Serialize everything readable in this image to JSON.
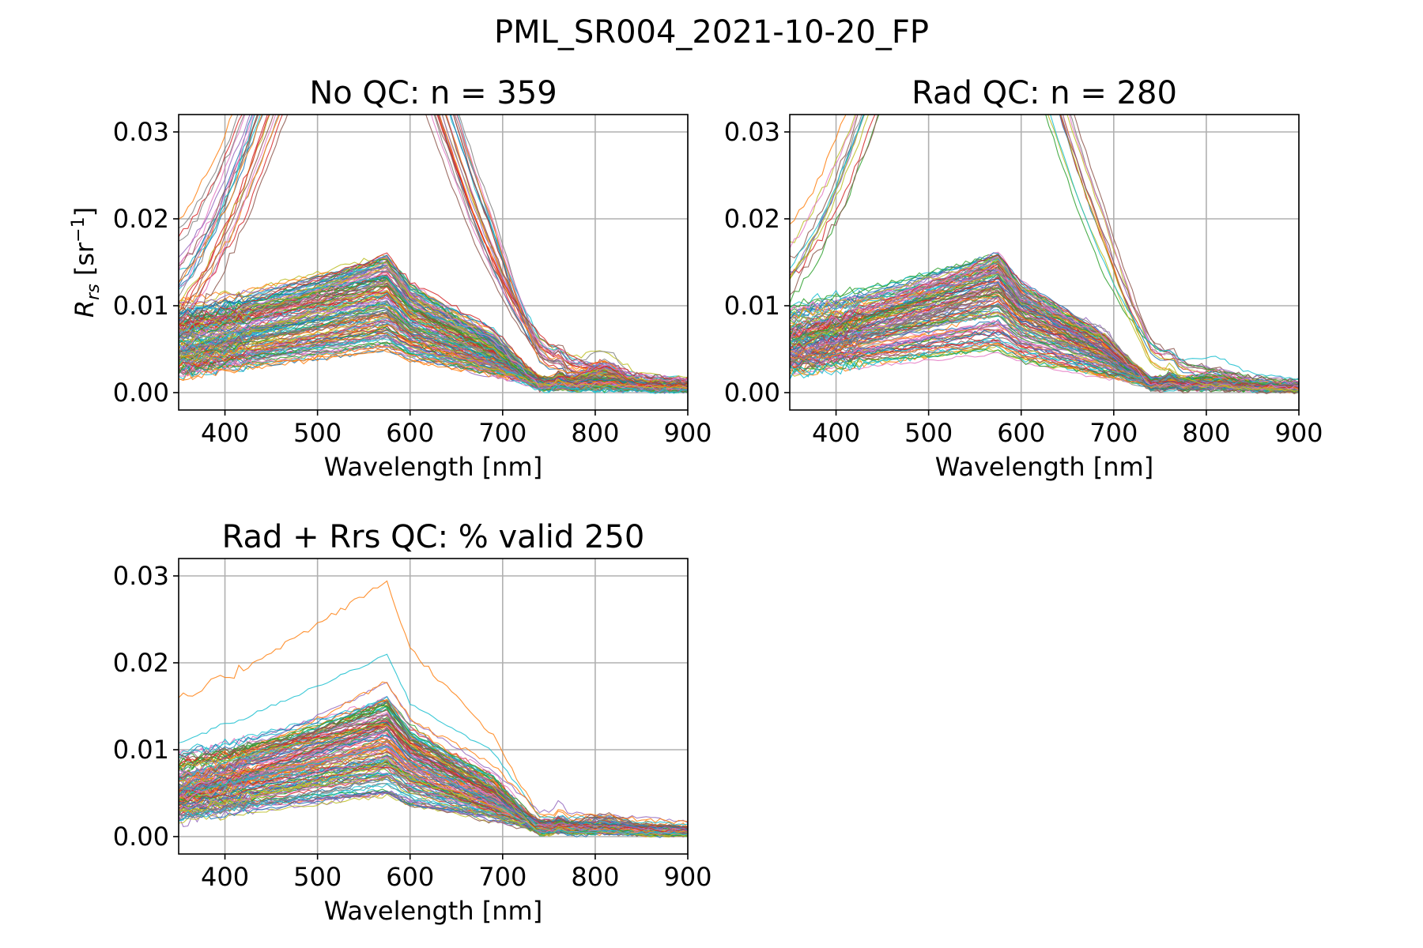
{
  "figure": {
    "title": "PML_SR004_2021-10-20_FP"
  },
  "chart_data": [
    {
      "type": "line",
      "title": "No QC: n = 359",
      "n_spectra": 359,
      "xlabel": "Wavelength [nm]",
      "ylabel_main": "R",
      "ylabel_sub": "rs",
      "ylabel_unit_pre": " [sr",
      "ylabel_unit_sup": "−1",
      "ylabel_unit_post": "]",
      "xlim": [
        350,
        900
      ],
      "ylim": [
        -0.002,
        0.032
      ],
      "xticks": [
        400,
        500,
        600,
        700,
        800,
        900
      ],
      "xtick_labels": [
        "400",
        "500",
        "600",
        "700",
        "800",
        "900"
      ],
      "yticks": [
        0,
        0.01,
        0.02,
        0.03
      ],
      "ytick_labels": [
        "0.00",
        "0.01",
        "0.02",
        "0.03"
      ],
      "grid": true,
      "legend": "none",
      "series_summary": {
        "peak_wavelength_nm": 575,
        "typical_peak_rrs": 0.013,
        "typical_400nm_rrs": 0.006,
        "outlier_spectra_exceed_ylim": true
      }
    },
    {
      "type": "line",
      "title": "Rad QC: n = 280",
      "n_spectra": 280,
      "xlabel": "Wavelength [nm]",
      "xlim": [
        350,
        900
      ],
      "ylim": [
        -0.002,
        0.032
      ],
      "xticks": [
        400,
        500,
        600,
        700,
        800,
        900
      ],
      "xtick_labels": [
        "400",
        "500",
        "600",
        "700",
        "800",
        "900"
      ],
      "yticks": [
        0,
        0.01,
        0.02,
        0.03
      ],
      "ytick_labels": [
        "0.00",
        "0.01",
        "0.02",
        "0.03"
      ],
      "grid": true,
      "legend": "none",
      "series_summary": {
        "peak_wavelength_nm": 575,
        "typical_peak_rrs": 0.013,
        "max_peak_rrs": 0.03,
        "outlier_spectra_exceed_ylim": true
      }
    },
    {
      "type": "line",
      "title": "Rad + Rrs QC: % valid 250",
      "n_spectra": 250,
      "xlabel": "Wavelength [nm]",
      "xlim": [
        350,
        900
      ],
      "ylim": [
        -0.002,
        0.032
      ],
      "xticks": [
        400,
        500,
        600,
        700,
        800,
        900
      ],
      "xtick_labels": [
        "400",
        "500",
        "600",
        "700",
        "800",
        "900"
      ],
      "yticks": [
        0,
        0.01,
        0.02,
        0.03
      ],
      "ytick_labels": [
        "0.00",
        "0.01",
        "0.02",
        "0.03"
      ],
      "grid": true,
      "legend": "none",
      "series_summary": {
        "peak_wavelength_nm": 575,
        "typical_peak_rrs": 0.013,
        "max_peak_rrs": 0.031,
        "outlier_spectra_exceed_ylim": false
      }
    }
  ],
  "colors": {
    "palette": [
      "#1f77b4",
      "#ff7f0e",
      "#2ca02c",
      "#d62728",
      "#9467bd",
      "#8c564b",
      "#e377c2",
      "#7f7f7f",
      "#bcbd22",
      "#17becf"
    ],
    "grid": "#b0b0b0",
    "axes": "#000000"
  }
}
